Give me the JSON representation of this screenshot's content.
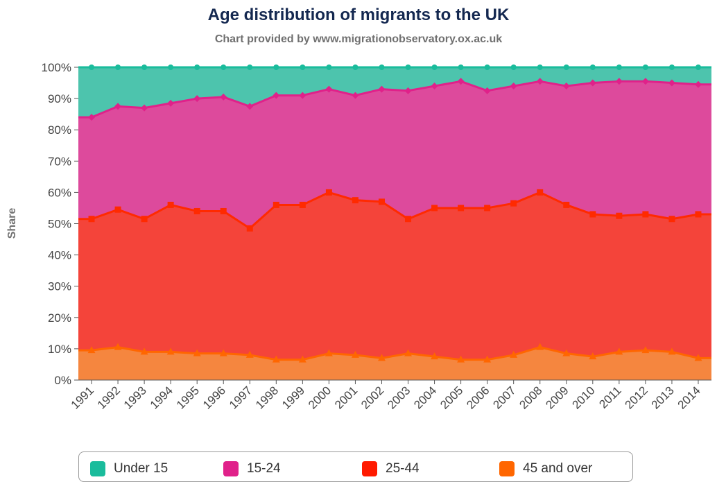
{
  "title": "Age distribution of migrants to the UK",
  "subtitle": "Chart provided by www.migrationobservatory.ox.ac.uk",
  "chart_data": {
    "type": "area",
    "stacked": true,
    "title": "Age distribution of migrants to the UK",
    "subtitle": "Chart provided by www.migrationobservatory.ox.ac.uk",
    "xlabel": "",
    "ylabel": "Share",
    "ylim": [
      0,
      100
    ],
    "y_ticks": [
      "0%",
      "10%",
      "20%",
      "30%",
      "40%",
      "50%",
      "60%",
      "70%",
      "80%",
      "90%",
      "100%"
    ],
    "categories": [
      "1991",
      "1992",
      "1993",
      "1994",
      "1995",
      "1996",
      "1997",
      "1998",
      "1999",
      "2000",
      "2001",
      "2002",
      "2003",
      "2004",
      "2005",
      "2006",
      "2007",
      "2008",
      "2009",
      "2010",
      "2011",
      "2012",
      "2013",
      "2014"
    ],
    "grid": true,
    "legend_position": "bottom",
    "series": [
      {
        "name": "45 and over",
        "color": "#f5863f",
        "line_color": "#ff6600",
        "values": [
          9.5,
          10.5,
          9,
          9,
          8.5,
          8.5,
          8,
          6.5,
          6.5,
          8.5,
          8,
          7,
          8.5,
          7.5,
          6.5,
          6.5,
          8,
          10.5,
          8.5,
          7.5,
          9,
          9.5,
          9,
          7
        ]
      },
      {
        "name": "25-44",
        "color": "#f4443a",
        "line_color": "#ff2a00",
        "values": [
          42,
          44,
          42.5,
          47,
          45.5,
          45.5,
          40.5,
          49.5,
          49.5,
          51.5,
          49.5,
          50,
          43,
          47.5,
          48.5,
          48.5,
          48.5,
          49.5,
          47.5,
          45.5,
          43.5,
          43.5,
          42.5,
          46
        ]
      },
      {
        "name": "15-24",
        "color": "#dd4a9c",
        "line_color": "#e0218a",
        "values": [
          32.5,
          33,
          35.5,
          32.5,
          36,
          36.5,
          39,
          35,
          35,
          33,
          33.5,
          36,
          41,
          39,
          40.5,
          37.5,
          37.5,
          35.5,
          38,
          42,
          43,
          42.5,
          43.5,
          41.5
        ]
      },
      {
        "name": "Under 15",
        "color": "#4dc4ad",
        "line_color": "#1abc9c",
        "values": [
          16,
          12.5,
          13,
          11.5,
          10,
          9.5,
          12.5,
          9,
          9,
          7,
          9,
          7,
          7.5,
          6,
          4.5,
          7.5,
          6,
          4.5,
          6,
          5,
          4.5,
          4.5,
          5,
          5.5
        ]
      }
    ]
  }
}
